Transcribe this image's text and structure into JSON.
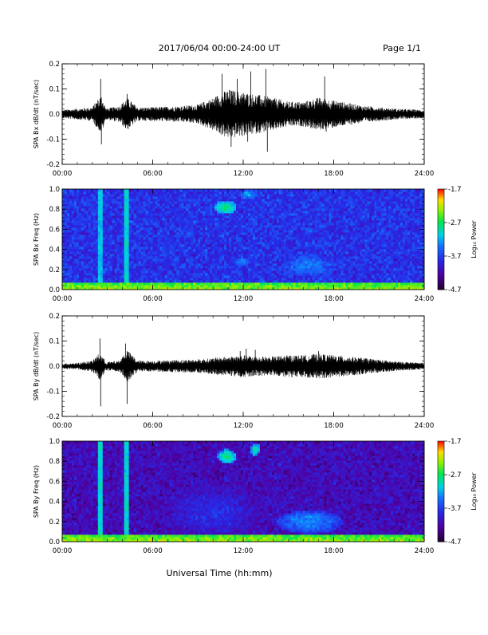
{
  "header": {
    "title": "2017/06/04  00:00-24:00 UT",
    "page": "Page 1/1"
  },
  "footer": {
    "xlabel": "Universal Time (hh:mm)"
  },
  "chart_data": [
    {
      "type": "line",
      "name": "bx-waveform",
      "ylabel": "SPA Bx dB/dt (nT/sec)",
      "xlim": [
        0,
        24
      ],
      "ylim": [
        -0.2,
        0.2
      ],
      "xticks": [
        "00:00",
        "06:00",
        "12:00",
        "18:00",
        "24:00"
      ],
      "yticks": [
        "-0.2",
        "-0.1",
        "0.0",
        "0.1",
        "0.2"
      ],
      "envelope": [
        [
          0,
          0.015
        ],
        [
          1,
          0.02
        ],
        [
          2,
          0.025
        ],
        [
          2.3,
          0.05
        ],
        [
          2.6,
          0.07
        ],
        [
          2.9,
          0.02
        ],
        [
          3.8,
          0.03
        ],
        [
          4.3,
          0.06
        ],
        [
          5,
          0.025
        ],
        [
          6,
          0.025
        ],
        [
          8,
          0.03
        ],
        [
          9,
          0.035
        ],
        [
          10,
          0.06
        ],
        [
          11,
          0.09
        ],
        [
          12,
          0.08
        ],
        [
          13,
          0.07
        ],
        [
          14,
          0.06
        ],
        [
          15,
          0.045
        ],
        [
          16,
          0.045
        ],
        [
          17,
          0.06
        ],
        [
          18,
          0.05
        ],
        [
          20,
          0.03
        ],
        [
          22,
          0.02
        ],
        [
          24,
          0.015
        ]
      ],
      "spikes": [
        [
          2.55,
          0.14
        ],
        [
          2.6,
          -0.12
        ],
        [
          4.3,
          0.08
        ],
        [
          10.6,
          0.16
        ],
        [
          11.2,
          -0.13
        ],
        [
          11.6,
          0.14
        ],
        [
          12.3,
          -0.11
        ],
        [
          12.5,
          0.17
        ],
        [
          13.5,
          0.18
        ],
        [
          13.6,
          -0.15
        ],
        [
          17.4,
          0.15
        ],
        [
          17.5,
          -0.07
        ]
      ]
    },
    {
      "type": "heatmap",
      "name": "bx-spectrogram",
      "ylabel": "SPA Bx Freq (Hz)",
      "xlim": [
        0,
        24
      ],
      "ylim": [
        0.0,
        1.0
      ],
      "xticks": [
        "00:00",
        "06:00",
        "12:00",
        "18:00",
        "24:00"
      ],
      "yticks": [
        "0.0",
        "0.2",
        "0.4",
        "0.6",
        "0.8",
        "1.0"
      ],
      "colorbar": {
        "label": "Log₁₀ Power",
        "ticks": [
          "-1.7",
          "-2.7",
          "-3.7",
          "-4.7"
        ],
        "range": [
          -4.7,
          -1.7
        ]
      },
      "base_level": -3.75,
      "low_freq_level": -2.6,
      "vertical_lines": [
        [
          2.55,
          -3.1
        ],
        [
          4.3,
          -3.0
        ]
      ],
      "blobs": [
        {
          "t": 10.8,
          "f": 0.82,
          "dt": 0.7,
          "df": 0.07,
          "level": -2.8
        },
        {
          "t": 12.3,
          "f": 0.95,
          "dt": 0.6,
          "df": 0.05,
          "level": -3.2
        },
        {
          "t": 16.3,
          "f": 0.25,
          "dt": 1.8,
          "df": 0.12,
          "level": -3.35
        },
        {
          "t": 12.0,
          "f": 0.28,
          "dt": 0.6,
          "df": 0.04,
          "level": -3.3
        }
      ]
    },
    {
      "type": "line",
      "name": "by-waveform",
      "ylabel": "SPA By dB/dt (nT/sec)",
      "xlim": [
        0,
        24
      ],
      "ylim": [
        -0.2,
        0.2
      ],
      "xticks": [
        "00:00",
        "06:00",
        "12:00",
        "18:00",
        "24:00"
      ],
      "yticks": [
        "-0.2",
        "-0.1",
        "0.0",
        "0.1",
        "0.2"
      ],
      "envelope": [
        [
          0,
          0.01
        ],
        [
          1,
          0.012
        ],
        [
          2,
          0.02
        ],
        [
          2.5,
          0.05
        ],
        [
          2.9,
          0.015
        ],
        [
          3.8,
          0.02
        ],
        [
          4.3,
          0.06
        ],
        [
          5,
          0.02
        ],
        [
          6,
          0.02
        ],
        [
          9,
          0.025
        ],
        [
          10,
          0.03
        ],
        [
          11,
          0.035
        ],
        [
          12,
          0.04
        ],
        [
          13,
          0.035
        ],
        [
          14,
          0.035
        ],
        [
          15,
          0.04
        ],
        [
          16,
          0.04
        ],
        [
          17,
          0.045
        ],
        [
          18,
          0.04
        ],
        [
          20,
          0.03
        ],
        [
          22,
          0.018
        ],
        [
          24,
          0.012
        ]
      ],
      "spikes": [
        [
          2.5,
          0.11
        ],
        [
          2.55,
          -0.16
        ],
        [
          4.2,
          0.09
        ],
        [
          4.3,
          -0.15
        ],
        [
          11.8,
          0.06
        ],
        [
          12.2,
          0.07
        ],
        [
          12.8,
          0.065
        ],
        [
          17.0,
          0.06
        ]
      ]
    },
    {
      "type": "heatmap",
      "name": "by-spectrogram",
      "ylabel": "SPA By Freq (Hz)",
      "xlim": [
        0,
        24
      ],
      "ylim": [
        0.0,
        1.0
      ],
      "xticks": [
        "00:00",
        "06:00",
        "12:00",
        "18:00",
        "24:00"
      ],
      "yticks": [
        "0.0",
        "0.2",
        "0.4",
        "0.6",
        "0.8",
        "1.0"
      ],
      "colorbar": {
        "label": "Log₁₀ Power",
        "ticks": [
          "-1.7",
          "-2.7",
          "-3.7",
          "-4.7"
        ],
        "range": [
          -4.7,
          -1.7
        ]
      },
      "base_level": -4.1,
      "low_freq_level": -2.6,
      "vertical_lines": [
        [
          2.55,
          -3.0
        ],
        [
          4.3,
          -3.0
        ]
      ],
      "blobs": [
        {
          "t": 10.9,
          "f": 0.85,
          "dt": 0.6,
          "df": 0.07,
          "level": -2.8
        },
        {
          "t": 12.8,
          "f": 0.92,
          "dt": 0.35,
          "df": 0.06,
          "level": -2.9
        },
        {
          "t": 16.4,
          "f": 0.2,
          "dt": 2.2,
          "df": 0.12,
          "level": -3.3
        },
        {
          "t": 10.0,
          "f": 0.3,
          "dt": 3.5,
          "df": 0.3,
          "level": -3.8
        }
      ]
    }
  ]
}
